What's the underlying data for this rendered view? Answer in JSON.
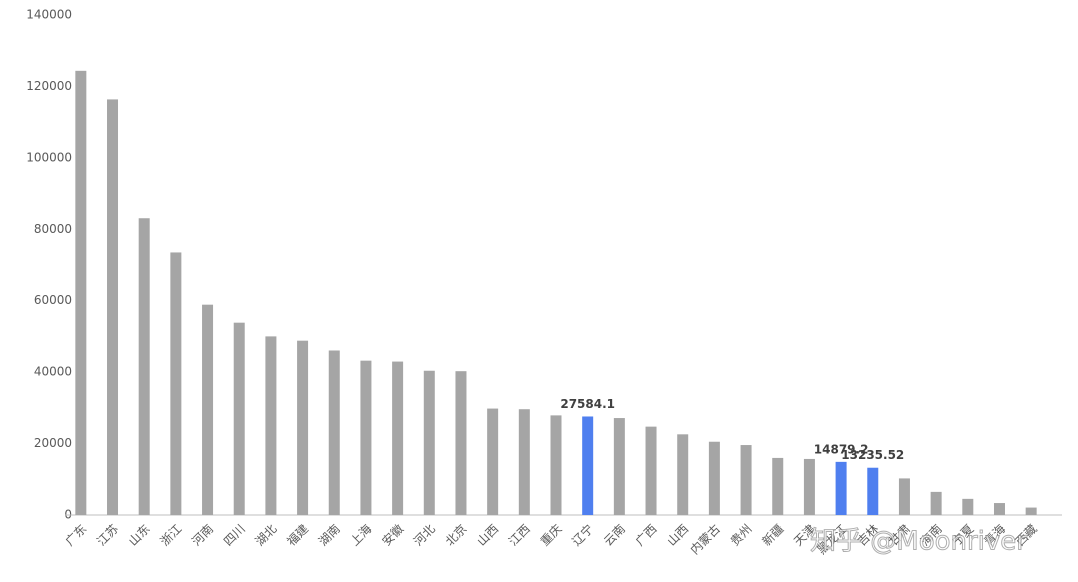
{
  "chart_data": {
    "type": "bar",
    "categories": [
      "广东",
      "江苏",
      "山东",
      "浙江",
      "河南",
      "四川",
      "湖北",
      "福建",
      "湖南",
      "上海",
      "安徽",
      "河北",
      "北京",
      "山西",
      "江西",
      "重庆",
      "辽宁",
      "云南",
      "广西",
      "山西",
      "内蒙古",
      "贵州",
      "新疆",
      "天津",
      "黑龙江",
      "吉林",
      "甘肃",
      "海南",
      "宁夏",
      "青海",
      "西藏"
    ],
    "values": [
      124369.7,
      116364.2,
      83095.9,
      73516,
      58887.4,
      53850.8,
      50012.9,
      48810.4,
      46063.1,
      43214.9,
      42959.2,
      40391.3,
      40269.6,
      29800.98,
      29619.7,
      27894,
      27584.1,
      27146.8,
      24740.9,
      22590.2,
      20514.2,
      19586.4,
      15983.6,
      15695.1,
      14879.2,
      13235.52,
      10243.3,
      6475.2,
      4522.3,
      3346.6,
      2080.2
    ],
    "colors": [
      "#a5a5a5",
      "#a5a5a5",
      "#a5a5a5",
      "#a5a5a5",
      "#a5a5a5",
      "#a5a5a5",
      "#a5a5a5",
      "#a5a5a5",
      "#a5a5a5",
      "#a5a5a5",
      "#a5a5a5",
      "#a5a5a5",
      "#a5a5a5",
      "#a5a5a5",
      "#a5a5a5",
      "#a5a5a5",
      "#4f7fef",
      "#a5a5a5",
      "#a5a5a5",
      "#a5a5a5",
      "#a5a5a5",
      "#a5a5a5",
      "#a5a5a5",
      "#a5a5a5",
      "#4f7fef",
      "#4f7fef",
      "#a5a5a5",
      "#a5a5a5",
      "#a5a5a5",
      "#a5a5a5",
      "#a5a5a5"
    ],
    "value_labels": [
      null,
      null,
      null,
      null,
      null,
      null,
      null,
      null,
      null,
      null,
      null,
      null,
      null,
      null,
      null,
      null,
      "27584.1",
      null,
      null,
      null,
      null,
      null,
      null,
      null,
      "14879.2",
      "13235.52",
      null,
      null,
      null,
      null,
      null
    ],
    "ylim": [
      0,
      140000
    ],
    "yticks": [
      0,
      20000,
      40000,
      60000,
      80000,
      100000,
      120000,
      140000
    ],
    "grid": false,
    "watermark": "知乎 @Moonriver"
  }
}
